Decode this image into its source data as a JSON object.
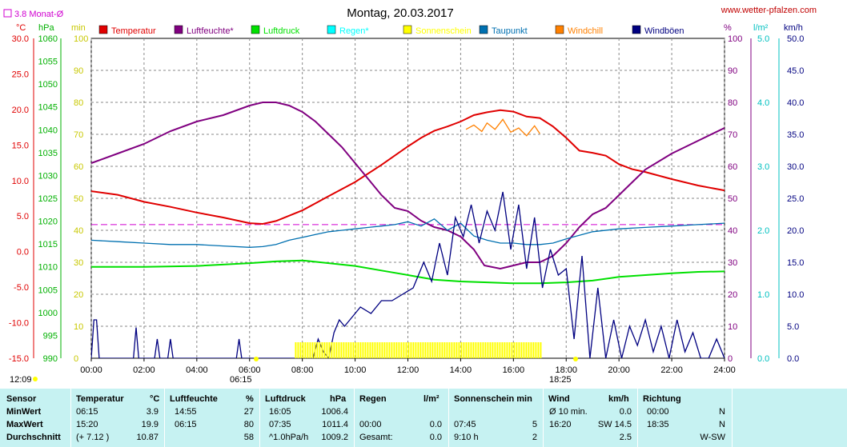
{
  "header": {
    "title": "Montag, 20.03.2017",
    "website": "www.wetter-pfalzen.com",
    "monthly_avg_label": "3.8 Monat-Ø"
  },
  "axis_units": {
    "temp": "°C",
    "pressure": "hPa",
    "sunshine": "min",
    "percent": "%",
    "rain": "l/m²",
    "wind": "km/h"
  },
  "legend": [
    {
      "label": "Temperatur",
      "color": "#e00000"
    },
    {
      "label": "Luftfeuchte*",
      "color": "#800080"
    },
    {
      "label": "Luftdruck",
      "color": "#00e000"
    },
    {
      "label": "Regen*",
      "color": "#00ffff"
    },
    {
      "label": "Sonnenschein",
      "color": "#ffff00"
    },
    {
      "label": "Taupunkt",
      "color": "#0070b0"
    },
    {
      "label": "Windchill",
      "color": "#ff8000"
    },
    {
      "label": "Windböen",
      "color": "#000080"
    }
  ],
  "time_marks": {
    "left": "12:09",
    "sunrise": "06:15",
    "sunset": "18:25"
  },
  "chart_data": {
    "type": "line",
    "title": "Montag, 20.03.2017",
    "x_ticks": [
      "00:00",
      "02:00",
      "04:00",
      "06:00",
      "08:00",
      "10:00",
      "12:00",
      "14:00",
      "16:00",
      "18:00",
      "20:00",
      "22:00",
      "24:00"
    ],
    "x_range": [
      0,
      24
    ],
    "axes": {
      "temp": {
        "range": [
          -15,
          30
        ],
        "ticks": [
          "30.0",
          "25.0",
          "20.0",
          "15.0",
          "10.0",
          "5.0",
          "0.0",
          "-5.0",
          "-10.0",
          "-15.0"
        ]
      },
      "pressure": {
        "range": [
          990,
          1060
        ],
        "ticks": [
          "1060",
          "1055",
          "1050",
          "1045",
          "1040",
          "1035",
          "1030",
          "1025",
          "1020",
          "1015",
          "1010",
          "1005",
          "1000",
          "995",
          "990"
        ]
      },
      "sunshine": {
        "range": [
          0,
          100
        ],
        "ticks": [
          "100",
          "90",
          "80",
          "70",
          "60",
          "50",
          "40",
          "30",
          "20",
          "10",
          "0"
        ]
      },
      "percent": {
        "range": [
          0,
          100
        ],
        "ticks": [
          "100",
          "90",
          "80",
          "70",
          "60",
          "50",
          "40",
          "30",
          "20",
          "10",
          "0"
        ]
      },
      "rain": {
        "range": [
          0,
          5
        ],
        "ticks": [
          "5.0",
          "4.0",
          "3.0",
          "2.0",
          "1.0",
          "0.0"
        ]
      },
      "wind": {
        "range": [
          0,
          50
        ],
        "ticks": [
          "50.0",
          "45.0",
          "40.0",
          "35.0",
          "30.0",
          "25.0",
          "20.0",
          "15.0",
          "10.0",
          "5.0",
          "0.0"
        ]
      }
    },
    "monthly_avg_temp": 3.8,
    "series": [
      {
        "name": "Temperatur",
        "axis": "temp",
        "color": "#e00000",
        "x": [
          0,
          1,
          2,
          3,
          4,
          5,
          6,
          6.5,
          7,
          8,
          9,
          10,
          11,
          12,
          12.5,
          13,
          13.5,
          14,
          14.5,
          15,
          15.5,
          16,
          16.5,
          17,
          17.5,
          18,
          18.5,
          19,
          19.5,
          20,
          20.5,
          21,
          22,
          23,
          24
        ],
        "y": [
          8.5,
          8.0,
          7.0,
          6.3,
          5.5,
          4.8,
          4.0,
          3.9,
          4.3,
          5.8,
          7.8,
          9.8,
          12.2,
          14.8,
          16.0,
          17.0,
          17.6,
          18.3,
          19.2,
          19.6,
          19.9,
          19.7,
          19.0,
          18.8,
          17.6,
          16.0,
          14.2,
          13.9,
          13.5,
          12.3,
          11.6,
          11.2,
          10.2,
          9.3,
          8.6
        ]
      },
      {
        "name": "Luftfeuchte*",
        "axis": "percent",
        "color": "#800080",
        "x": [
          0,
          1,
          2,
          3,
          4,
          5,
          6,
          6.5,
          7,
          7.5,
          8,
          8.5,
          9,
          9.5,
          10,
          10.5,
          11,
          11.5,
          12,
          12.5,
          13,
          13.5,
          14,
          14.5,
          14.9,
          15.5,
          16,
          16.5,
          17,
          17.5,
          18,
          18.5,
          19,
          19.5,
          20,
          20.5,
          21,
          22,
          23,
          24
        ],
        "y": [
          61,
          64,
          67,
          71,
          74,
          76,
          79,
          80,
          80,
          79,
          77,
          74,
          70,
          66,
          61,
          56,
          51,
          47,
          46,
          43,
          41,
          40,
          38,
          34,
          29,
          28,
          29,
          30,
          30,
          32,
          36,
          41,
          45,
          47,
          51,
          55,
          59,
          64,
          68,
          72
        ]
      },
      {
        "name": "Luftdruck",
        "axis": "pressure",
        "color": "#00e000",
        "x": [
          0,
          2,
          4,
          6,
          7,
          8,
          9,
          10,
          11,
          12,
          13,
          14,
          15,
          16,
          17,
          18,
          19,
          20,
          21,
          22,
          23,
          24
        ],
        "y": [
          1010.0,
          1010.0,
          1010.2,
          1010.8,
          1011.2,
          1011.4,
          1010.8,
          1010.2,
          1009.2,
          1008.2,
          1007.2,
          1006.8,
          1006.6,
          1006.4,
          1006.4,
          1006.6,
          1007.0,
          1007.8,
          1008.2,
          1008.6,
          1008.9,
          1009.0
        ]
      },
      {
        "name": "Taupunkt",
        "axis": "temp",
        "color": "#0070b0",
        "x": [
          0,
          1,
          2,
          3,
          4,
          5,
          6,
          6.5,
          7,
          7.5,
          8,
          8.5,
          9,
          9.5,
          10,
          10.5,
          11,
          11.5,
          12,
          12.5,
          13,
          13.5,
          14,
          14.5,
          15,
          15.5,
          16,
          16.5,
          17,
          17.5,
          18,
          18.5,
          19,
          20,
          21,
          22,
          23,
          24
        ],
        "y": [
          1.6,
          1.4,
          1.2,
          1.0,
          1.0,
          0.8,
          0.6,
          0.7,
          1.0,
          1.6,
          2.0,
          2.4,
          2.8,
          3.0,
          3.2,
          3.4,
          3.6,
          3.8,
          4.2,
          3.6,
          4.6,
          3.0,
          4.0,
          2.2,
          1.6,
          1.2,
          1.2,
          1.0,
          1.0,
          1.2,
          1.8,
          2.3,
          2.8,
          3.2,
          3.4,
          3.6,
          3.8,
          4.0
        ]
      },
      {
        "name": "Windchill",
        "axis": "temp",
        "color": "#ff8000",
        "x": [
          14.2,
          14.5,
          14.8,
          15.0,
          15.3,
          15.6,
          15.9,
          16.2,
          16.5,
          16.8,
          17.0
        ],
        "y": [
          17.2,
          17.8,
          16.9,
          18.1,
          17.2,
          18.6,
          16.8,
          17.4,
          16.3,
          17.7,
          16.6
        ]
      },
      {
        "name": "Windböen",
        "axis": "wind",
        "color": "#000080",
        "x": [
          0,
          0.1,
          0.2,
          0.3,
          0.4,
          0.6,
          0.8,
          1.2,
          1.6,
          1.7,
          1.8,
          2.0,
          2.4,
          2.5,
          2.6,
          2.9,
          3.0,
          3.1,
          5.5,
          5.6,
          5.7,
          8.4,
          8.6,
          8.8,
          9.0,
          9.2,
          9.4,
          9.6,
          9.8,
          10.2,
          10.6,
          11.0,
          11.4,
          11.8,
          12.2,
          12.6,
          12.9,
          13.2,
          13.5,
          13.8,
          14.1,
          14.4,
          14.7,
          15.0,
          15.3,
          15.6,
          15.9,
          16.2,
          16.5,
          16.8,
          17.1,
          17.4,
          17.7,
          18.0,
          18.3,
          18.6,
          18.9,
          19.2,
          19.5,
          19.8,
          20.1,
          20.4,
          20.7,
          21.0,
          21.3,
          21.6,
          21.9,
          22.2,
          22.5,
          22.8,
          23.1,
          23.4,
          23.7,
          24
        ],
        "y": [
          0,
          6,
          6,
          0,
          0,
          0,
          0,
          0,
          0,
          4.8,
          0,
          0,
          0,
          3,
          0,
          0,
          3,
          0,
          0,
          3,
          0,
          0,
          3,
          1,
          0,
          4,
          6,
          5,
          6,
          8,
          7,
          9,
          9,
          10,
          11,
          15,
          12,
          18,
          13,
          22,
          19,
          24,
          18,
          23,
          20,
          26,
          17,
          24,
          14,
          22,
          11,
          17,
          13,
          14,
          3,
          16,
          0,
          11,
          0,
          6,
          0,
          5,
          2,
          6,
          1,
          5,
          0,
          6,
          1,
          4,
          0,
          0,
          3,
          0
        ]
      },
      {
        "name": "Sonnenschein",
        "axis": "sunshine",
        "color": "#ffff00",
        "x": [
          7.75,
          17.1
        ],
        "y": [
          5,
          5
        ]
      }
    ]
  },
  "stats": {
    "headers": {
      "sensor": "Sensor",
      "temperature": "Temperatur",
      "temperature_unit": "°C",
      "humidity": "Luftfeuchte",
      "humidity_unit": "%",
      "pressure": "Luftdruck",
      "pressure_unit": "hPa",
      "rain": "Regen",
      "rain_unit": "l/m²",
      "sunshine": "Sonnenschein min",
      "wind": "Wind",
      "wind_unit": "km/h",
      "direction": "Richtung"
    },
    "rows": [
      {
        "label": "MinWert",
        "temp_time": "06:15",
        "temp": "3.9",
        "hum_time": "14:55",
        "hum": "27",
        "press_time": "16:05",
        "press": "1006.4",
        "rain_time": "",
        "rain": "",
        "sun_time": "",
        "sun": "",
        "wind_time": "Ø 10 min.",
        "wind": "0.0",
        "dir_time": "00:00",
        "dir": "N"
      },
      {
        "label": "MaxWert",
        "temp_time": "15:20",
        "temp": "19.9",
        "hum_time": "06:15",
        "hum": "80",
        "press_time": "07:35",
        "press": "1011.4",
        "rain_time": "00:00",
        "rain": "0.0",
        "sun_time": "07:45",
        "sun": "5",
        "wind_time": "16:20",
        "wind": "SW 14.5",
        "dir_time": "18:35",
        "dir": "N"
      },
      {
        "label": "Durchschnitt",
        "temp_time": "(+ 7.12 )",
        "temp": "10.87",
        "hum_time": "",
        "hum": "58",
        "press_time": "^1.0hPa/h",
        "press": "1009.2",
        "rain_time": "Gesamt:",
        "rain": "0.0",
        "sun_time": "9:10 h",
        "sun": "2",
        "wind_time": "",
        "wind": "2.5",
        "dir_time": "",
        "dir": "W-SW"
      }
    ]
  }
}
